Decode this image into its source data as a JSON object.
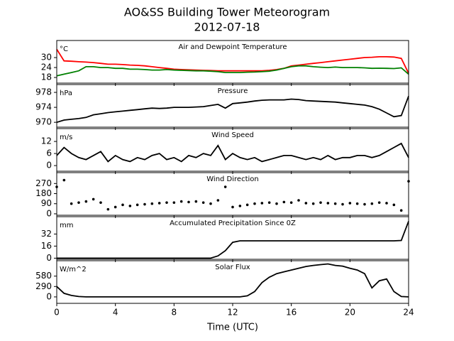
{
  "title": "AO&SS Building Tower Meteorogram",
  "subtitle": "2012-07-18",
  "chart_data": [
    {
      "type": "line",
      "title": "Air and Dewpoint Temperature",
      "ylabel": "°C",
      "x": [
        0,
        0.5,
        1,
        1.5,
        2,
        2.5,
        3,
        3.5,
        4,
        4.5,
        5,
        5.5,
        6,
        6.5,
        7,
        7.5,
        8,
        8.5,
        9,
        9.5,
        10,
        10.5,
        11,
        11.5,
        12,
        12.5,
        13,
        13.5,
        14,
        14.5,
        15,
        15.5,
        16,
        16.5,
        17,
        17.5,
        18,
        18.5,
        19,
        19.5,
        20,
        20.5,
        21,
        21.5,
        22,
        22.5,
        23,
        23.5,
        24
      ],
      "series": [
        {
          "name": "Air Temperature",
          "color": "#ff0000",
          "values": [
            35,
            28,
            27.8,
            27.5,
            27.3,
            27,
            26.5,
            26,
            26,
            25.8,
            25.5,
            25.3,
            25,
            24.5,
            24,
            23.5,
            23,
            22.8,
            22.6,
            22.5,
            22.3,
            22.2,
            22,
            22,
            22,
            22,
            22,
            22,
            22,
            22.3,
            22.8,
            23.5,
            25,
            25.5,
            26,
            26.5,
            27,
            27.5,
            28,
            28.5,
            29,
            29.5,
            30,
            30.2,
            30.5,
            30.5,
            30.3,
            29.5,
            20.5
          ]
        },
        {
          "name": "Dewpoint",
          "color": "#008000",
          "values": [
            19,
            20,
            21,
            22,
            24.5,
            24.5,
            24,
            24,
            23.5,
            23.5,
            23,
            23,
            22.8,
            22.5,
            22.5,
            22.8,
            22.5,
            22.3,
            22.2,
            22,
            22,
            21.8,
            21.5,
            21,
            21,
            21,
            21.2,
            21.3,
            21.5,
            21.8,
            22.5,
            23.5,
            24.5,
            25,
            25,
            24.5,
            24.2,
            24,
            24.3,
            24,
            24,
            24,
            23.8,
            23.5,
            23.6,
            23.5,
            23.4,
            23.8,
            20
          ]
        }
      ],
      "xlim": [
        0,
        24
      ],
      "ylim": [
        14.6,
        40.3
      ],
      "yticks": [
        18,
        24,
        30
      ]
    },
    {
      "type": "line",
      "title": "Pressure",
      "ylabel": "hPa",
      "x": [
        0,
        0.5,
        1,
        1.5,
        2,
        2.5,
        3,
        3.5,
        4,
        4.5,
        5,
        5.5,
        6,
        6.5,
        7,
        7.5,
        8,
        8.5,
        9,
        9.5,
        10,
        10.5,
        11,
        11.5,
        12,
        12.5,
        13,
        13.5,
        14,
        14.5,
        15,
        15.5,
        16,
        16.5,
        17,
        17.5,
        18,
        18.5,
        19,
        19.5,
        20,
        20.5,
        21,
        21.5,
        22,
        22.5,
        23,
        23.5,
        24
      ],
      "series": [
        {
          "name": "Pressure",
          "color": "#000000",
          "values": [
            970,
            970.6,
            970.8,
            971,
            971.3,
            972,
            972.3,
            972.6,
            972.8,
            973,
            973.2,
            973.4,
            973.6,
            973.8,
            973.7,
            973.8,
            974,
            974,
            974,
            974.1,
            974.2,
            974.5,
            974.8,
            973.8,
            975,
            975.2,
            975.4,
            975.7,
            975.9,
            976,
            976,
            976,
            976.2,
            976.1,
            975.8,
            975.7,
            975.6,
            975.5,
            975.4,
            975.2,
            975,
            974.8,
            974.6,
            974.2,
            973.5,
            972.5,
            971.5,
            971.8,
            977
          ]
        }
      ],
      "xlim": [
        0,
        24
      ],
      "ylim": [
        968.7,
        980.1
      ],
      "yticks": [
        970,
        974,
        978
      ]
    },
    {
      "type": "line",
      "title": "Wind Speed",
      "ylabel": "m/s",
      "x": [
        0,
        0.5,
        1,
        1.5,
        2,
        2.5,
        3,
        3.5,
        4,
        4.5,
        5,
        5.5,
        6,
        6.5,
        7,
        7.5,
        8,
        8.5,
        9,
        9.5,
        10,
        10.5,
        11,
        11.5,
        12,
        12.5,
        13,
        13.5,
        14,
        14.5,
        15,
        15.5,
        16,
        16.5,
        17,
        17.5,
        18,
        18.5,
        19,
        19.5,
        20,
        20.5,
        21,
        21.5,
        22,
        22.5,
        23,
        23.5,
        24
      ],
      "series": [
        {
          "name": "Wind Speed",
          "color": "#000000",
          "values": [
            5,
            9,
            6,
            4,
            3,
            5,
            7,
            2,
            5,
            3,
            2,
            4,
            3,
            5,
            6,
            3,
            4,
            2,
            5,
            4,
            6,
            5,
            10,
            3,
            6,
            4,
            3,
            4,
            2,
            3,
            4,
            5,
            5,
            4,
            3,
            4,
            3,
            5,
            3,
            4,
            4,
            5,
            5,
            4,
            5,
            7,
            9,
            11,
            4
          ]
        }
      ],
      "xlim": [
        0,
        24
      ],
      "ylim": [
        -2.8,
        18.4
      ],
      "yticks": [
        0,
        6,
        12
      ]
    },
    {
      "type": "scatter",
      "title": "Wind Direction",
      "x": [
        0,
        0.5,
        1,
        1.5,
        2,
        2.5,
        3,
        3.5,
        4,
        4.5,
        5,
        5.5,
        6,
        6.5,
        7,
        7.5,
        8,
        8.5,
        9,
        9.5,
        10,
        10.5,
        11,
        11.5,
        12,
        12.5,
        13,
        13.5,
        14,
        14.5,
        15,
        15.5,
        16,
        16.5,
        17,
        17.5,
        18,
        18.5,
        19,
        19.5,
        20,
        20.5,
        21,
        21.5,
        22,
        22.5,
        23,
        23.5,
        24
      ],
      "series": [
        {
          "name": "Wind Direction",
          "color": "#000000",
          "values": [
            240,
            300,
            90,
            100,
            110,
            130,
            100,
            40,
            60,
            80,
            70,
            80,
            85,
            90,
            95,
            100,
            100,
            110,
            105,
            110,
            100,
            90,
            120,
            240,
            60,
            70,
            80,
            90,
            95,
            100,
            90,
            105,
            100,
            120,
            95,
            90,
            100,
            95,
            90,
            85,
            95,
            90,
            85,
            90,
            100,
            95,
            80,
            30,
            290
          ]
        }
      ],
      "xlim": [
        0,
        24
      ],
      "ylim": [
        -13,
        367
      ],
      "yticks": [
        0,
        90,
        180,
        270
      ]
    },
    {
      "type": "line",
      "title": "Accumulated Precipitation Since 0Z",
      "ylabel": "mm",
      "x": [
        0,
        0.5,
        1,
        1.5,
        2,
        2.5,
        3,
        3.5,
        4,
        4.5,
        5,
        5.5,
        6,
        6.5,
        7,
        7.5,
        8,
        8.5,
        9,
        9.5,
        10,
        10.5,
        11,
        11.5,
        12,
        12.5,
        13,
        13.5,
        14,
        14.5,
        15,
        15.5,
        16,
        16.5,
        17,
        17.5,
        18,
        18.5,
        19,
        19.5,
        20,
        20.5,
        21,
        21.5,
        22,
        22.5,
        23,
        23.5,
        24
      ],
      "series": [
        {
          "name": "Precipitation",
          "color": "#000000",
          "values": [
            0,
            0,
            0,
            0,
            0,
            0,
            0,
            0,
            0,
            0,
            0,
            0,
            0,
            0,
            0,
            0,
            0,
            0,
            0,
            0,
            0,
            0,
            3,
            10,
            21,
            23,
            23,
            23,
            23,
            23,
            23,
            23,
            23,
            23,
            23,
            23,
            23,
            23,
            23,
            23,
            23,
            23,
            23,
            23,
            23,
            23,
            23,
            23.5,
            49
          ]
        }
      ],
      "xlim": [
        0,
        24
      ],
      "ylim": [
        -1.5,
        55
      ],
      "yticks": [
        0,
        16,
        32
      ]
    },
    {
      "type": "line",
      "title": "Solar Flux",
      "ylabel": "W/m^2",
      "xlabel": "Time (UTC)",
      "x": [
        0,
        0.5,
        1,
        1.5,
        2,
        2.5,
        3,
        3.5,
        4,
        4.5,
        5,
        5.5,
        6,
        6.5,
        7,
        7.5,
        8,
        8.5,
        9,
        9.5,
        10,
        10.5,
        11,
        11.5,
        12,
        12.5,
        13,
        13.5,
        14,
        14.5,
        15,
        15.5,
        16,
        16.5,
        17,
        17.5,
        18,
        18.5,
        19,
        19.5,
        20,
        20.5,
        21,
        21.5,
        22,
        22.5,
        23,
        23.5,
        24
      ],
      "series": [
        {
          "name": "Solar Flux",
          "color": "#000000",
          "values": [
            290,
            100,
            40,
            10,
            0,
            0,
            0,
            0,
            0,
            0,
            0,
            0,
            0,
            0,
            0,
            0,
            0,
            0,
            0,
            0,
            0,
            0,
            0,
            0,
            0,
            0,
            30,
            150,
            400,
            550,
            650,
            700,
            750,
            800,
            850,
            880,
            900,
            920,
            880,
            860,
            800,
            750,
            650,
            250,
            450,
            500,
            150,
            10,
            0
          ]
        }
      ],
      "xlim": [
        0,
        24
      ],
      "ylim": [
        -180,
        1010
      ],
      "yticks": [
        0,
        290,
        580
      ],
      "xticks": [
        0,
        4,
        8,
        12,
        16,
        20,
        24
      ]
    }
  ]
}
